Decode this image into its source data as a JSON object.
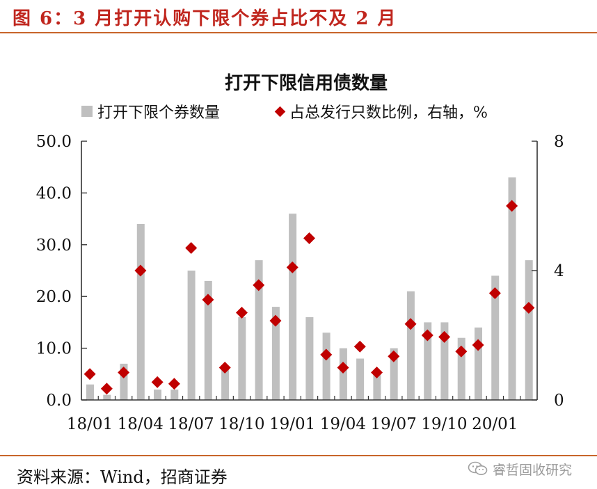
{
  "header": {
    "figure_title": "图 6：3 月打开认购下限个券占比不及 2 月"
  },
  "footer": {
    "source": "资料来源：Wind，招商证券",
    "watermark": "睿哲固收研究",
    "watermark_icon": "wechat-icon"
  },
  "colors": {
    "accent_rule": "#c8652a",
    "title_red": "#c0261e",
    "bar_gray": "#bfbfbf",
    "marker_red": "#c00000"
  },
  "chart_data": {
    "type": "bar",
    "title": "打开下限信用债数量",
    "legend": {
      "position": "top",
      "bar_label": "打开下限个券数量",
      "marker_label": "占总发行只数比例，右轴，%"
    },
    "xlabel": "",
    "ylabel": "",
    "y_left": {
      "min": 0,
      "max": 50,
      "ticks": [
        "0.0",
        "10.0",
        "20.0",
        "30.0",
        "40.0",
        "50.0"
      ]
    },
    "y_right": {
      "min": 0,
      "max": 8,
      "ticks": [
        "0",
        "4",
        "8"
      ]
    },
    "x_tick_labels": [
      {
        "index": 0,
        "label": "18/01"
      },
      {
        "index": 3,
        "label": "18/04"
      },
      {
        "index": 6,
        "label": "18/07"
      },
      {
        "index": 9,
        "label": "18/10"
      },
      {
        "index": 12,
        "label": "19/01"
      },
      {
        "index": 15,
        "label": "19/04"
      },
      {
        "index": 18,
        "label": "19/07"
      },
      {
        "index": 21,
        "label": "19/10"
      },
      {
        "index": 24,
        "label": "20/01"
      }
    ],
    "categories": [
      "18/01",
      "18/02",
      "18/03",
      "18/04",
      "18/05",
      "18/06",
      "18/07",
      "18/08",
      "18/09",
      "18/10",
      "18/11",
      "18/12",
      "19/01",
      "19/02",
      "19/03",
      "19/04",
      "19/05",
      "19/06",
      "19/07",
      "19/08",
      "19/09",
      "19/10",
      "19/11",
      "19/12",
      "20/01",
      "20/02",
      "20/03"
    ],
    "series": [
      {
        "name": "打开下限个券数量",
        "type": "bar",
        "axis": "left",
        "values": [
          3,
          1,
          7,
          34,
          2,
          2,
          25,
          23,
          6,
          16,
          27,
          18,
          36,
          16,
          13,
          10,
          8,
          5,
          10,
          21,
          15,
          15,
          12,
          14,
          24,
          43,
          27
        ]
      },
      {
        "name": "占总发行只数比例，右轴，%",
        "type": "scatter",
        "axis": "right",
        "values": [
          0.8,
          0.35,
          0.85,
          4.0,
          0.55,
          0.5,
          4.7,
          3.1,
          1.0,
          2.7,
          3.55,
          2.45,
          4.1,
          5.0,
          1.4,
          1.0,
          1.65,
          0.85,
          1.35,
          2.35,
          2.0,
          1.95,
          1.5,
          1.7,
          3.3,
          6.0,
          2.85
        ]
      }
    ]
  }
}
